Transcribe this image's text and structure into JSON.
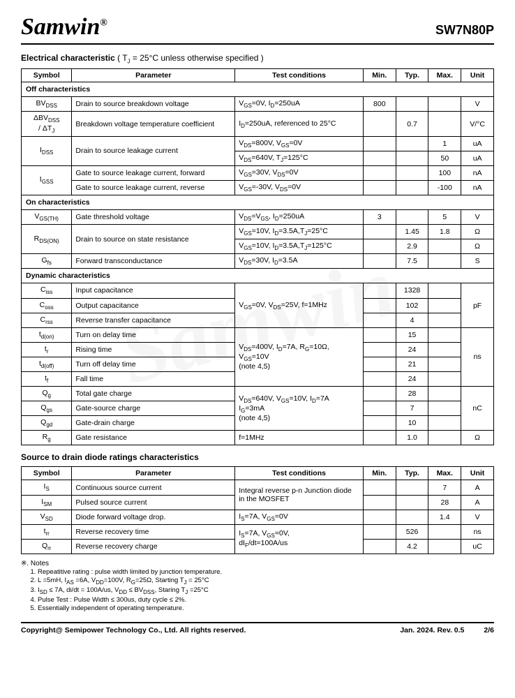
{
  "header": {
    "brand": "Samwin",
    "reg": "®",
    "part": "SW7N80P"
  },
  "section1": {
    "title_bold": "Electrical characteristic",
    "title_rest": " ( T_J = 25°C unless otherwise specified )"
  },
  "tbl1": {
    "headers": {
      "sym": "Symbol",
      "param": "Parameter",
      "cond": "Test conditions",
      "min": "Min.",
      "typ": "Typ.",
      "max": "Max.",
      "unit": "Unit"
    },
    "groups": {
      "off": "Off characteristics",
      "on": "On characteristics",
      "dyn": "Dynamic characteristics"
    },
    "rows": {
      "r1": {
        "sym": "BV_DSS",
        "param": "Drain to source breakdown voltage",
        "cond": "V_GS=0V, I_D=250uA",
        "min": "800",
        "typ": "",
        "max": "",
        "unit": "V"
      },
      "r2": {
        "sym": "ΔBV_DSS / ΔT_J",
        "param": "Breakdown voltage temperature coefficient",
        "cond": "I_D=250uA, referenced to 25°C",
        "min": "",
        "typ": "0.7",
        "max": "",
        "unit": "V/°C"
      },
      "r3a": {
        "sym": "I_DSS",
        "param": "Drain to source leakage current",
        "cond": "V_DS=800V, V_GS=0V",
        "min": "",
        "typ": "",
        "max": "1",
        "unit": "uA"
      },
      "r3b": {
        "cond": "V_DS=640V, T_J=125°C",
        "min": "",
        "typ": "",
        "max": "50",
        "unit": "uA"
      },
      "r4a": {
        "sym": "I_GSS",
        "param": "Gate to source leakage current, forward",
        "cond": "V_GS=30V, V_DS=0V",
        "min": "",
        "typ": "",
        "max": "100",
        "unit": "nA"
      },
      "r4b": {
        "param": "Gate to source leakage current, reverse",
        "cond": "V_GS=-30V, V_DS=0V",
        "min": "",
        "typ": "",
        "max": "-100",
        "unit": "nA"
      },
      "r5": {
        "sym": "V_GS(TH)",
        "param": "Gate threshold voltage",
        "cond": "V_DS=V_GS, I_D=250uA",
        "min": "3",
        "typ": "",
        "max": "5",
        "unit": "V"
      },
      "r6a": {
        "sym": "R_DS(ON)",
        "param": "Drain to source on state resistance",
        "cond": "V_GS=10V, I_D=3.5A,T_J=25°C",
        "min": "",
        "typ": "1.45",
        "max": "1.8",
        "unit": "Ω"
      },
      "r6b": {
        "cond": "V_GS=10V, I_D=3.5A,T_J=125°C",
        "min": "",
        "typ": "2.9",
        "max": "",
        "unit": "Ω"
      },
      "r7": {
        "sym": "G_fs",
        "param": "Forward transconductance",
        "cond": "V_DS=30V, I_D=3.5A",
        "min": "",
        "typ": "7.5",
        "max": "",
        "unit": "S"
      },
      "r8": {
        "sym": "C_iss",
        "param": "Input capacitance",
        "typ": "1328"
      },
      "r9": {
        "sym": "C_oss",
        "param": "Output capacitance",
        "cond": "V_GS=0V, V_DS=25V, f=1MHz",
        "typ": "102",
        "unit": "pF"
      },
      "r10": {
        "sym": "C_rss",
        "param": "Reverse transfer capacitance",
        "typ": "4"
      },
      "r11": {
        "sym": "t_d(on)",
        "param": "Turn on delay time",
        "typ": "15"
      },
      "r12": {
        "sym": "t_r",
        "param": "Rising time",
        "cond": "V_DS=400V, I_D=7A, R_G=10Ω, V_GS=10V (note 4,5)",
        "typ": "24",
        "unit": "ns"
      },
      "r13": {
        "sym": "t_d(off)",
        "param": "Turn off delay time",
        "typ": "21"
      },
      "r14": {
        "sym": "t_f",
        "param": "Fall time",
        "typ": "24"
      },
      "r15": {
        "sym": "Q_g",
        "param": "Total gate charge",
        "cond": "V_DS=640V, V_GS=10V, I_D=7A I_G=3mA (note 4,5)",
        "typ": "28",
        "unit": "nC"
      },
      "r16": {
        "sym": "Q_gs",
        "param": "Gate-source charge",
        "typ": "7"
      },
      "r17": {
        "sym": "Q_gd",
        "param": "Gate-drain charge",
        "typ": "10"
      },
      "r18": {
        "sym": "R_g",
        "param": "Gate resistance",
        "cond": "f=1MHz",
        "min": "",
        "typ": "1.0",
        "max": "",
        "unit": "Ω"
      }
    }
  },
  "section2": {
    "title": "Source to drain diode ratings characteristics"
  },
  "tbl2": {
    "headers": {
      "sym": "Symbol",
      "param": "Parameter",
      "cond": "Test conditions",
      "min": "Min.",
      "typ": "Typ.",
      "max": "Max.",
      "unit": "Unit"
    },
    "rows": {
      "d1": {
        "sym": "I_S",
        "param": "Continuous source current",
        "cond": "Integral reverse p-n Junction diode in the MOSFET",
        "max": "7",
        "unit": "A"
      },
      "d2": {
        "sym": "I_SM",
        "param": "Pulsed source current",
        "max": "28",
        "unit": "A"
      },
      "d3": {
        "sym": "V_SD",
        "param": "Diode forward voltage drop.",
        "cond": "I_S=7A, V_GS=0V",
        "max": "1.4",
        "unit": "V"
      },
      "d4": {
        "sym": "t_rr",
        "param": "Reverse recovery time",
        "cond": "I_S=7A, V_GS=0V, dI_F/dt=100A/us",
        "typ": "526",
        "unit": "ns"
      },
      "d5": {
        "sym": "Q_rr",
        "param": "Reverse recovery charge",
        "typ": "4.2",
        "unit": "uC"
      }
    }
  },
  "notes": {
    "title": "※. Notes",
    "items": [
      "Repeatitive rating : pulse width limited by junction temperature.",
      "L =5mH, I_AS =6A, V_DD=100V, R_G=25Ω, Starting T_J = 25°C",
      "I_SD ≤ 7A, di/dt = 100A/us, V_DD ≤ BV_DSS, Staring T_J =25°C",
      "Pulse Test : Pulse Width ≤ 300us, duty cycle ≤ 2%.",
      "Essentially independent of operating temperature."
    ]
  },
  "footer": {
    "left": "Copyright@ Semipower Technology Co., Ltd. All rights reserved.",
    "date": "Jan. 2024. Rev. 0.5",
    "page": "2/6"
  }
}
